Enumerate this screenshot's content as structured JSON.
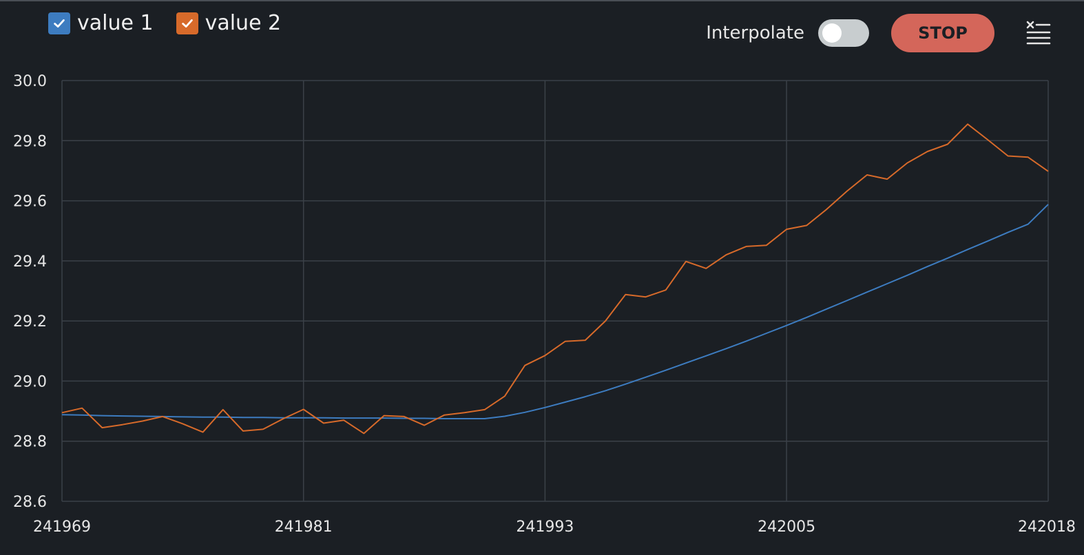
{
  "colors": {
    "background": "#1b1f24",
    "grid": "#3b4148",
    "series1": "#3d7cc0",
    "series2": "#d76a2a",
    "stop": "#d4665a",
    "toggle_off": "#c8cdcf"
  },
  "legend": {
    "items": [
      {
        "label": "value 1",
        "checked": true,
        "color": "#3d7cc0"
      },
      {
        "label": "value 2",
        "checked": true,
        "color": "#d76a2a"
      }
    ]
  },
  "controls": {
    "interpolate_label": "Interpolate",
    "interpolate_on": false,
    "stop_label": "STOP",
    "clear_icon": "clear-list-icon"
  },
  "chart_data": {
    "type": "line",
    "xlim": [
      241969,
      242018
    ],
    "ylim": [
      28.6,
      30.0
    ],
    "xticks": [
      "241969",
      "241981",
      "241993",
      "242005",
      "242018"
    ],
    "xtick_values": [
      241969,
      241981,
      241993,
      242005,
      242018
    ],
    "yticks": [
      "28.6",
      "28.8",
      "29.0",
      "29.2",
      "29.4",
      "29.6",
      "29.8",
      "30.0"
    ],
    "ytick_values": [
      28.6,
      28.8,
      29.0,
      29.2,
      29.4,
      29.6,
      29.8,
      30.0
    ],
    "grid": true,
    "series": [
      {
        "name": "value 1",
        "color": "#3d7cc0",
        "x": [
          241969,
          241970,
          241971,
          241972,
          241973,
          241974,
          241975,
          241976,
          241977,
          241978,
          241979,
          241980,
          241981,
          241982,
          241983,
          241984,
          241985,
          241986,
          241987,
          241988,
          241989,
          241990,
          241991,
          241992,
          241993,
          241994,
          241995,
          241996,
          241997,
          241998,
          241999,
          242000,
          242001,
          242002,
          242003,
          242004,
          242005,
          242006,
          242007,
          242008,
          242009,
          242010,
          242011,
          242012,
          242013,
          242014,
          242015,
          242016,
          242017,
          242018
        ],
        "y": [
          28.888,
          28.887,
          28.885,
          28.884,
          28.883,
          28.882,
          28.881,
          28.88,
          28.88,
          28.879,
          28.879,
          28.878,
          28.878,
          28.878,
          28.877,
          28.877,
          28.877,
          28.876,
          28.876,
          28.875,
          28.875,
          28.875,
          28.883,
          28.896,
          28.912,
          28.93,
          28.948,
          28.968,
          28.99,
          29.013,
          29.036,
          29.06,
          29.084,
          29.108,
          29.133,
          29.159,
          29.185,
          29.212,
          29.24,
          29.268,
          29.296,
          29.324,
          29.352,
          29.381,
          29.409,
          29.438,
          29.466,
          29.495,
          29.522,
          29.588
        ]
      },
      {
        "name": "value 2",
        "color": "#d76a2a",
        "x": [
          241969,
          241970,
          241971,
          241972,
          241973,
          241974,
          241975,
          241976,
          241977,
          241978,
          241979,
          241980,
          241981,
          241982,
          241983,
          241984,
          241985,
          241986,
          241987,
          241988,
          241989,
          241990,
          241991,
          241992,
          241993,
          241994,
          241995,
          241996,
          241997,
          241998,
          241999,
          242000,
          242001,
          242002,
          242003,
          242004,
          242005,
          242006,
          242007,
          242008,
          242009,
          242010,
          242011,
          242012,
          242013,
          242014,
          242015,
          242016,
          242017,
          242018
        ],
        "y": [
          28.895,
          28.91,
          28.845,
          28.855,
          28.867,
          28.882,
          28.858,
          28.83,
          28.905,
          28.834,
          28.84,
          28.875,
          28.906,
          28.86,
          28.87,
          28.826,
          28.885,
          28.882,
          28.853,
          28.887,
          28.895,
          28.905,
          28.95,
          29.052,
          29.085,
          29.132,
          29.136,
          29.2,
          29.288,
          29.28,
          29.303,
          29.398,
          29.375,
          29.42,
          29.448,
          29.452,
          29.505,
          29.518,
          29.572,
          29.632,
          29.686,
          29.672,
          29.726,
          29.764,
          29.788,
          29.855,
          29.803,
          29.749,
          29.745,
          29.698
        ]
      }
    ]
  }
}
